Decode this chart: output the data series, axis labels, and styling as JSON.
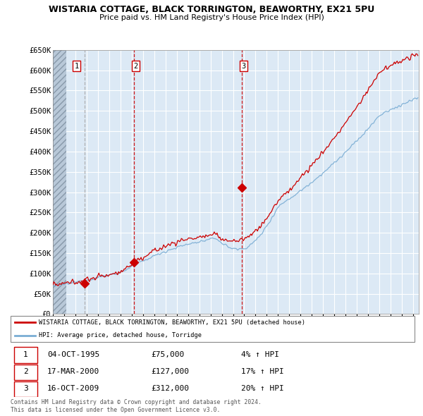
{
  "title": "WISTARIA COTTAGE, BLACK TORRINGTON, BEAWORTHY, EX21 5PU",
  "subtitle": "Price paid vs. HM Land Registry's House Price Index (HPI)",
  "ytick_values": [
    0,
    50000,
    100000,
    150000,
    200000,
    250000,
    300000,
    350000,
    400000,
    450000,
    500000,
    550000,
    600000,
    650000
  ],
  "xmin": 1993.0,
  "xmax": 2025.5,
  "ymin": 0,
  "ymax": 650000,
  "sale_color": "#cc0000",
  "hpi_color": "#7aadd4",
  "vline1_color": "#aaaaaa",
  "vline23_color": "#cc0000",
  "purchase_dates": [
    1995.79,
    2000.21,
    2009.79
  ],
  "purchase_prices": [
    75000,
    127000,
    312000
  ],
  "purchase_labels": [
    "1",
    "2",
    "3"
  ],
  "legend_sale_label": "WISTARIA COTTAGE, BLACK TORRINGTON, BEAWORTHY, EX21 5PU (detached house)",
  "legend_hpi_label": "HPI: Average price, detached house, Torridge",
  "table_rows": [
    [
      "1",
      "04-OCT-1995",
      "£75,000",
      "4% ↑ HPI"
    ],
    [
      "2",
      "17-MAR-2000",
      "£127,000",
      "17% ↑ HPI"
    ],
    [
      "3",
      "16-OCT-2009",
      "£312,000",
      "20% ↑ HPI"
    ]
  ],
  "footer_text": "Contains HM Land Registry data © Crown copyright and database right 2024.\nThis data is licensed under the Open Government Licence v3.0.",
  "bg_color": "#dce9f5",
  "hatch_color": "#c0c8d0",
  "grid_color": "#ffffff"
}
